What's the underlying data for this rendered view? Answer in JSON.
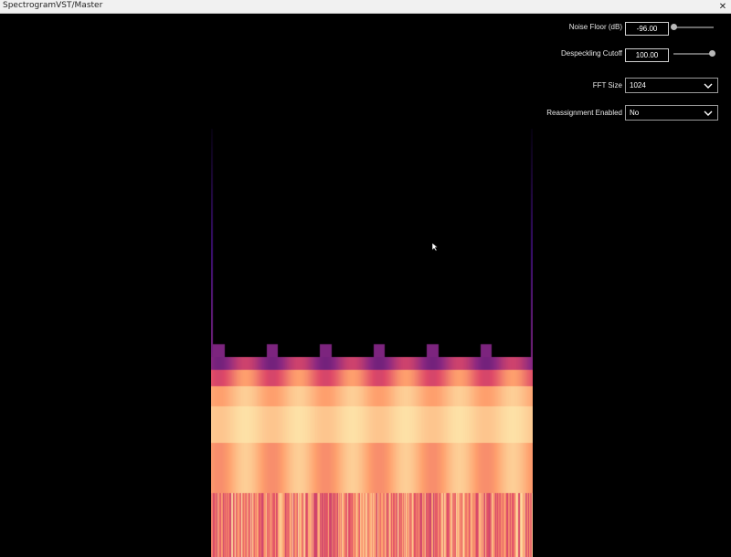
{
  "window": {
    "title": "SpectrogramVST/Master",
    "close_glyph": "✕"
  },
  "controls": {
    "noise_floor": {
      "label": "Noise Floor (dB)",
      "value": "-96.00",
      "slider_fraction": 0.0
    },
    "despeckling": {
      "label": "Despeckling Cutoff",
      "value": "100.00",
      "slider_fraction": 1.0
    },
    "fft_size": {
      "label": "FFT Size",
      "selected": "1024"
    },
    "reassignment": {
      "label": "Reassignment Enabled",
      "selected": "No"
    }
  },
  "icons": {
    "dropdown_chevron": "chevron-down-icon",
    "mouse_cursor": "arrow-cursor-icon"
  },
  "colors": {
    "background": "#000000",
    "colormap": [
      "#000004",
      "#3b0f70",
      "#8c2981",
      "#de4968",
      "#fe9f6d",
      "#fcfdbf"
    ]
  }
}
